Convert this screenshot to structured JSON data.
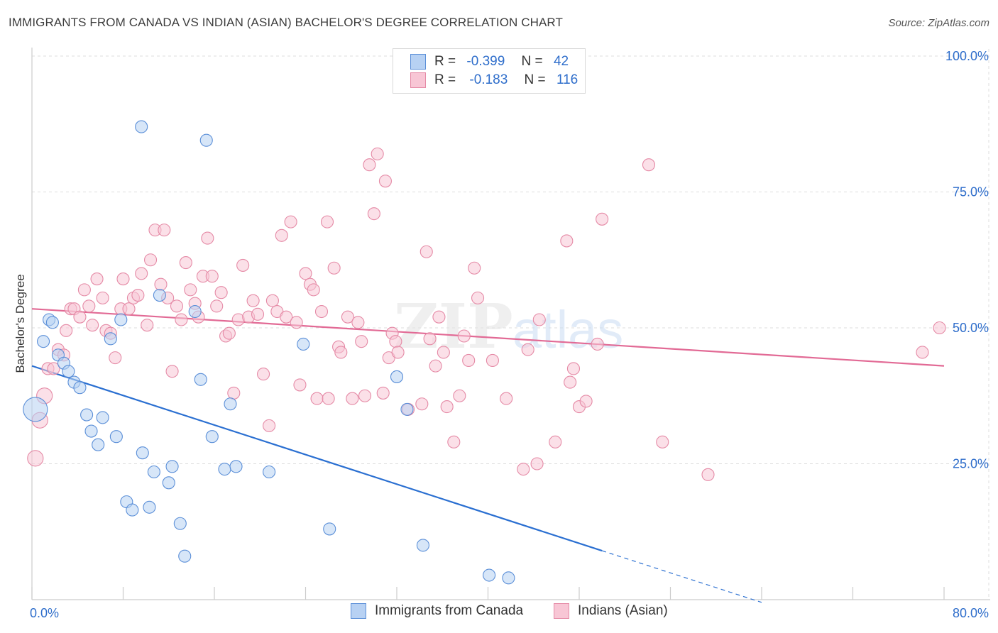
{
  "header": {
    "title": "IMMIGRANTS FROM CANADA VS INDIAN (ASIAN) BACHELOR'S DEGREE CORRELATION CHART",
    "source": "Source: ZipAtlas.com"
  },
  "legend": {
    "rows": [
      {
        "r_label": "R =",
        "r_value": "-0.399",
        "n_label": "N =",
        "n_value": "42"
      },
      {
        "r_label": "R =",
        "r_value": "-0.183",
        "n_label": "N =",
        "n_value": "116"
      }
    ]
  },
  "watermark": {
    "zip": "ZIP",
    "atlas": "atlas"
  },
  "colors": {
    "blue_fill": "#b7d1f3",
    "blue_stroke": "#5b8fd8",
    "blue_line": "#2a6fd1",
    "pink_fill": "#f8c6d5",
    "pink_stroke": "#e58aa6",
    "pink_line": "#e26a95",
    "axis_text": "#2f6ecb",
    "grid": "#dddddd"
  },
  "chart_data": {
    "type": "scatter",
    "title": "IMMIGRANTS FROM CANADA VS INDIAN (ASIAN) BACHELOR'S DEGREE CORRELATION CHART",
    "xlabel": "",
    "ylabel": "Bachelor's Degree",
    "xlim": [
      0,
      80
    ],
    "ylim": [
      0,
      100
    ],
    "x_tick_labels": [
      "0.0%",
      "80.0%"
    ],
    "y_tick_labels": [
      "100.0%",
      "75.0%",
      "50.0%",
      "25.0%"
    ],
    "y_ticks": [
      100,
      75,
      50,
      25
    ],
    "grid": true,
    "legend_position": "top-center",
    "series": [
      {
        "name": "Immigrants from Canada",
        "color": "#5b8fd8",
        "points": [
          [
            0.3,
            35.0,
            2
          ],
          [
            1.0,
            47.5,
            1
          ],
          [
            1.5,
            51.5,
            1
          ],
          [
            1.8,
            51.0,
            1
          ],
          [
            2.3,
            45.0,
            1
          ],
          [
            2.8,
            43.5,
            1
          ],
          [
            3.2,
            42.0,
            1
          ],
          [
            3.7,
            40.0,
            1
          ],
          [
            4.2,
            39.0,
            1
          ],
          [
            4.8,
            34.0,
            1
          ],
          [
            5.2,
            31.0,
            1
          ],
          [
            5.8,
            28.5,
            1
          ],
          [
            6.2,
            33.5,
            1
          ],
          [
            6.9,
            48.0,
            1
          ],
          [
            7.4,
            30.0,
            1
          ],
          [
            7.8,
            51.5,
            1
          ],
          [
            8.3,
            18.0,
            1
          ],
          [
            8.8,
            16.5,
            1
          ],
          [
            9.6,
            87.0,
            1
          ],
          [
            9.7,
            27.0,
            1
          ],
          [
            10.3,
            17.0,
            1
          ],
          [
            10.7,
            23.5,
            1
          ],
          [
            11.2,
            56.0,
            1
          ],
          [
            12.0,
            21.5,
            1
          ],
          [
            12.3,
            24.5,
            1
          ],
          [
            13.0,
            14.0,
            1
          ],
          [
            13.4,
            8.0,
            1
          ],
          [
            14.3,
            53.0,
            1
          ],
          [
            14.8,
            40.5,
            1
          ],
          [
            15.3,
            84.5,
            1
          ],
          [
            15.8,
            30.0,
            1
          ],
          [
            16.9,
            24.0,
            1
          ],
          [
            17.4,
            36.0,
            1
          ],
          [
            17.9,
            24.5,
            1
          ],
          [
            20.8,
            23.5,
            1
          ],
          [
            23.8,
            47.0,
            1
          ],
          [
            26.1,
            13.0,
            1
          ],
          [
            32.0,
            41.0,
            1
          ],
          [
            32.9,
            35.0,
            1
          ],
          [
            34.3,
            10.0,
            1
          ],
          [
            40.1,
            4.5,
            1
          ],
          [
            41.8,
            4.0,
            1
          ]
        ],
        "trend": {
          "x": [
            0,
            50
          ],
          "y": [
            43.0,
            9.0
          ]
        },
        "trend_dashed": {
          "x": [
            50,
            64
          ],
          "y": [
            9.0,
            -0.5
          ]
        }
      },
      {
        "name": "Indians (Asian)",
        "color": "#e58aa6",
        "points": [
          [
            0.3,
            26.0,
            1.3
          ],
          [
            0.7,
            33.0,
            1.3
          ],
          [
            1.1,
            37.5,
            1.3
          ],
          [
            1.4,
            42.5,
            1
          ],
          [
            1.9,
            42.5,
            1
          ],
          [
            2.3,
            46.0,
            1
          ],
          [
            2.8,
            45.0,
            1
          ],
          [
            3.0,
            49.5,
            1
          ],
          [
            3.4,
            53.5,
            1
          ],
          [
            3.7,
            53.5,
            1
          ],
          [
            4.2,
            52.0,
            1
          ],
          [
            4.6,
            57.0,
            1
          ],
          [
            5.0,
            54.0,
            1
          ],
          [
            5.3,
            50.5,
            1
          ],
          [
            5.7,
            59.0,
            1
          ],
          [
            6.2,
            55.5,
            1
          ],
          [
            6.5,
            49.5,
            1
          ],
          [
            6.9,
            49.0,
            1
          ],
          [
            7.3,
            44.5,
            1
          ],
          [
            7.8,
            53.5,
            1
          ],
          [
            8.0,
            59.0,
            1
          ],
          [
            8.5,
            53.5,
            1
          ],
          [
            8.9,
            55.5,
            1
          ],
          [
            9.3,
            56.0,
            1
          ],
          [
            9.6,
            60.0,
            1
          ],
          [
            10.1,
            50.5,
            1
          ],
          [
            10.4,
            62.5,
            1
          ],
          [
            10.8,
            68.0,
            1
          ],
          [
            11.3,
            58.0,
            1
          ],
          [
            11.6,
            68.0,
            1
          ],
          [
            11.9,
            55.5,
            1
          ],
          [
            12.3,
            42.0,
            1
          ],
          [
            12.7,
            54.0,
            1
          ],
          [
            13.1,
            51.5,
            1
          ],
          [
            13.5,
            62.0,
            1
          ],
          [
            13.9,
            57.0,
            1
          ],
          [
            14.3,
            54.5,
            1
          ],
          [
            14.6,
            52.0,
            1
          ],
          [
            15.0,
            59.5,
            1
          ],
          [
            15.4,
            66.5,
            1
          ],
          [
            15.8,
            59.5,
            1
          ],
          [
            16.2,
            54.0,
            1
          ],
          [
            16.6,
            56.5,
            1
          ],
          [
            17.0,
            48.5,
            1
          ],
          [
            17.3,
            49.0,
            1
          ],
          [
            17.7,
            38.0,
            1
          ],
          [
            18.1,
            51.5,
            1
          ],
          [
            18.5,
            61.5,
            1
          ],
          [
            19.0,
            52.0,
            1
          ],
          [
            19.4,
            55.0,
            1
          ],
          [
            19.8,
            52.5,
            1
          ],
          [
            20.3,
            41.5,
            1
          ],
          [
            20.8,
            32.0,
            1
          ],
          [
            21.1,
            55.0,
            1
          ],
          [
            21.5,
            53.0,
            1
          ],
          [
            21.9,
            67.0,
            1
          ],
          [
            22.3,
            52.0,
            1
          ],
          [
            22.7,
            69.5,
            1
          ],
          [
            23.2,
            51.0,
            1
          ],
          [
            23.5,
            39.5,
            1
          ],
          [
            24.0,
            60.0,
            1
          ],
          [
            24.4,
            58.0,
            1
          ],
          [
            24.7,
            57.0,
            1
          ],
          [
            25.0,
            37.0,
            1
          ],
          [
            25.4,
            53.0,
            1
          ],
          [
            25.9,
            69.5,
            1
          ],
          [
            26.0,
            37.0,
            1
          ],
          [
            26.5,
            61.0,
            1
          ],
          [
            26.9,
            46.5,
            1
          ],
          [
            27.1,
            45.5,
            1
          ],
          [
            27.7,
            52.0,
            1
          ],
          [
            28.1,
            37.0,
            1
          ],
          [
            28.6,
            51.0,
            1
          ],
          [
            28.9,
            47.5,
            1
          ],
          [
            29.2,
            37.5,
            1
          ],
          [
            29.6,
            80.0,
            1
          ],
          [
            30.0,
            71.0,
            1
          ],
          [
            30.3,
            82.0,
            1
          ],
          [
            30.8,
            38.0,
            1
          ],
          [
            31.0,
            77.0,
            1
          ],
          [
            31.3,
            44.5,
            1
          ],
          [
            31.6,
            49.0,
            1
          ],
          [
            31.9,
            47.5,
            1
          ],
          [
            32.1,
            45.5,
            1
          ],
          [
            33.0,
            35.0,
            1
          ],
          [
            34.2,
            36.0,
            1
          ],
          [
            34.6,
            64.0,
            1
          ],
          [
            34.9,
            48.0,
            1
          ],
          [
            35.4,
            43.0,
            1
          ],
          [
            35.7,
            52.0,
            1
          ],
          [
            36.1,
            45.5,
            1
          ],
          [
            36.4,
            35.5,
            1
          ],
          [
            37.0,
            29.0,
            1
          ],
          [
            37.5,
            37.5,
            1
          ],
          [
            37.9,
            48.5,
            1
          ],
          [
            38.3,
            44.0,
            1
          ],
          [
            38.8,
            61.0,
            1
          ],
          [
            39.1,
            55.5,
            1
          ],
          [
            40.4,
            44.0,
            1
          ],
          [
            41.6,
            37.0,
            1
          ],
          [
            43.1,
            24.0,
            1
          ],
          [
            43.5,
            46.0,
            1
          ],
          [
            44.3,
            25.0,
            1
          ],
          [
            44.5,
            51.5,
            1
          ],
          [
            45.9,
            29.0,
            1
          ],
          [
            46.9,
            66.0,
            1
          ],
          [
            47.2,
            40.0,
            1
          ],
          [
            47.5,
            42.5,
            1
          ],
          [
            48.0,
            35.5,
            1
          ],
          [
            48.6,
            36.5,
            1
          ],
          [
            49.6,
            47.0,
            1
          ],
          [
            50.0,
            70.0,
            1
          ],
          [
            54.1,
            80.0,
            1
          ],
          [
            55.3,
            29.0,
            1
          ],
          [
            59.3,
            23.0,
            1
          ],
          [
            78.1,
            45.5,
            1
          ],
          [
            79.6,
            50.0,
            1
          ]
        ],
        "trend": {
          "x": [
            0,
            80
          ],
          "y": [
            53.5,
            43.0
          ]
        }
      }
    ]
  },
  "bottom_legend": {
    "items": [
      "Immigrants from Canada",
      "Indians (Asian)"
    ]
  }
}
